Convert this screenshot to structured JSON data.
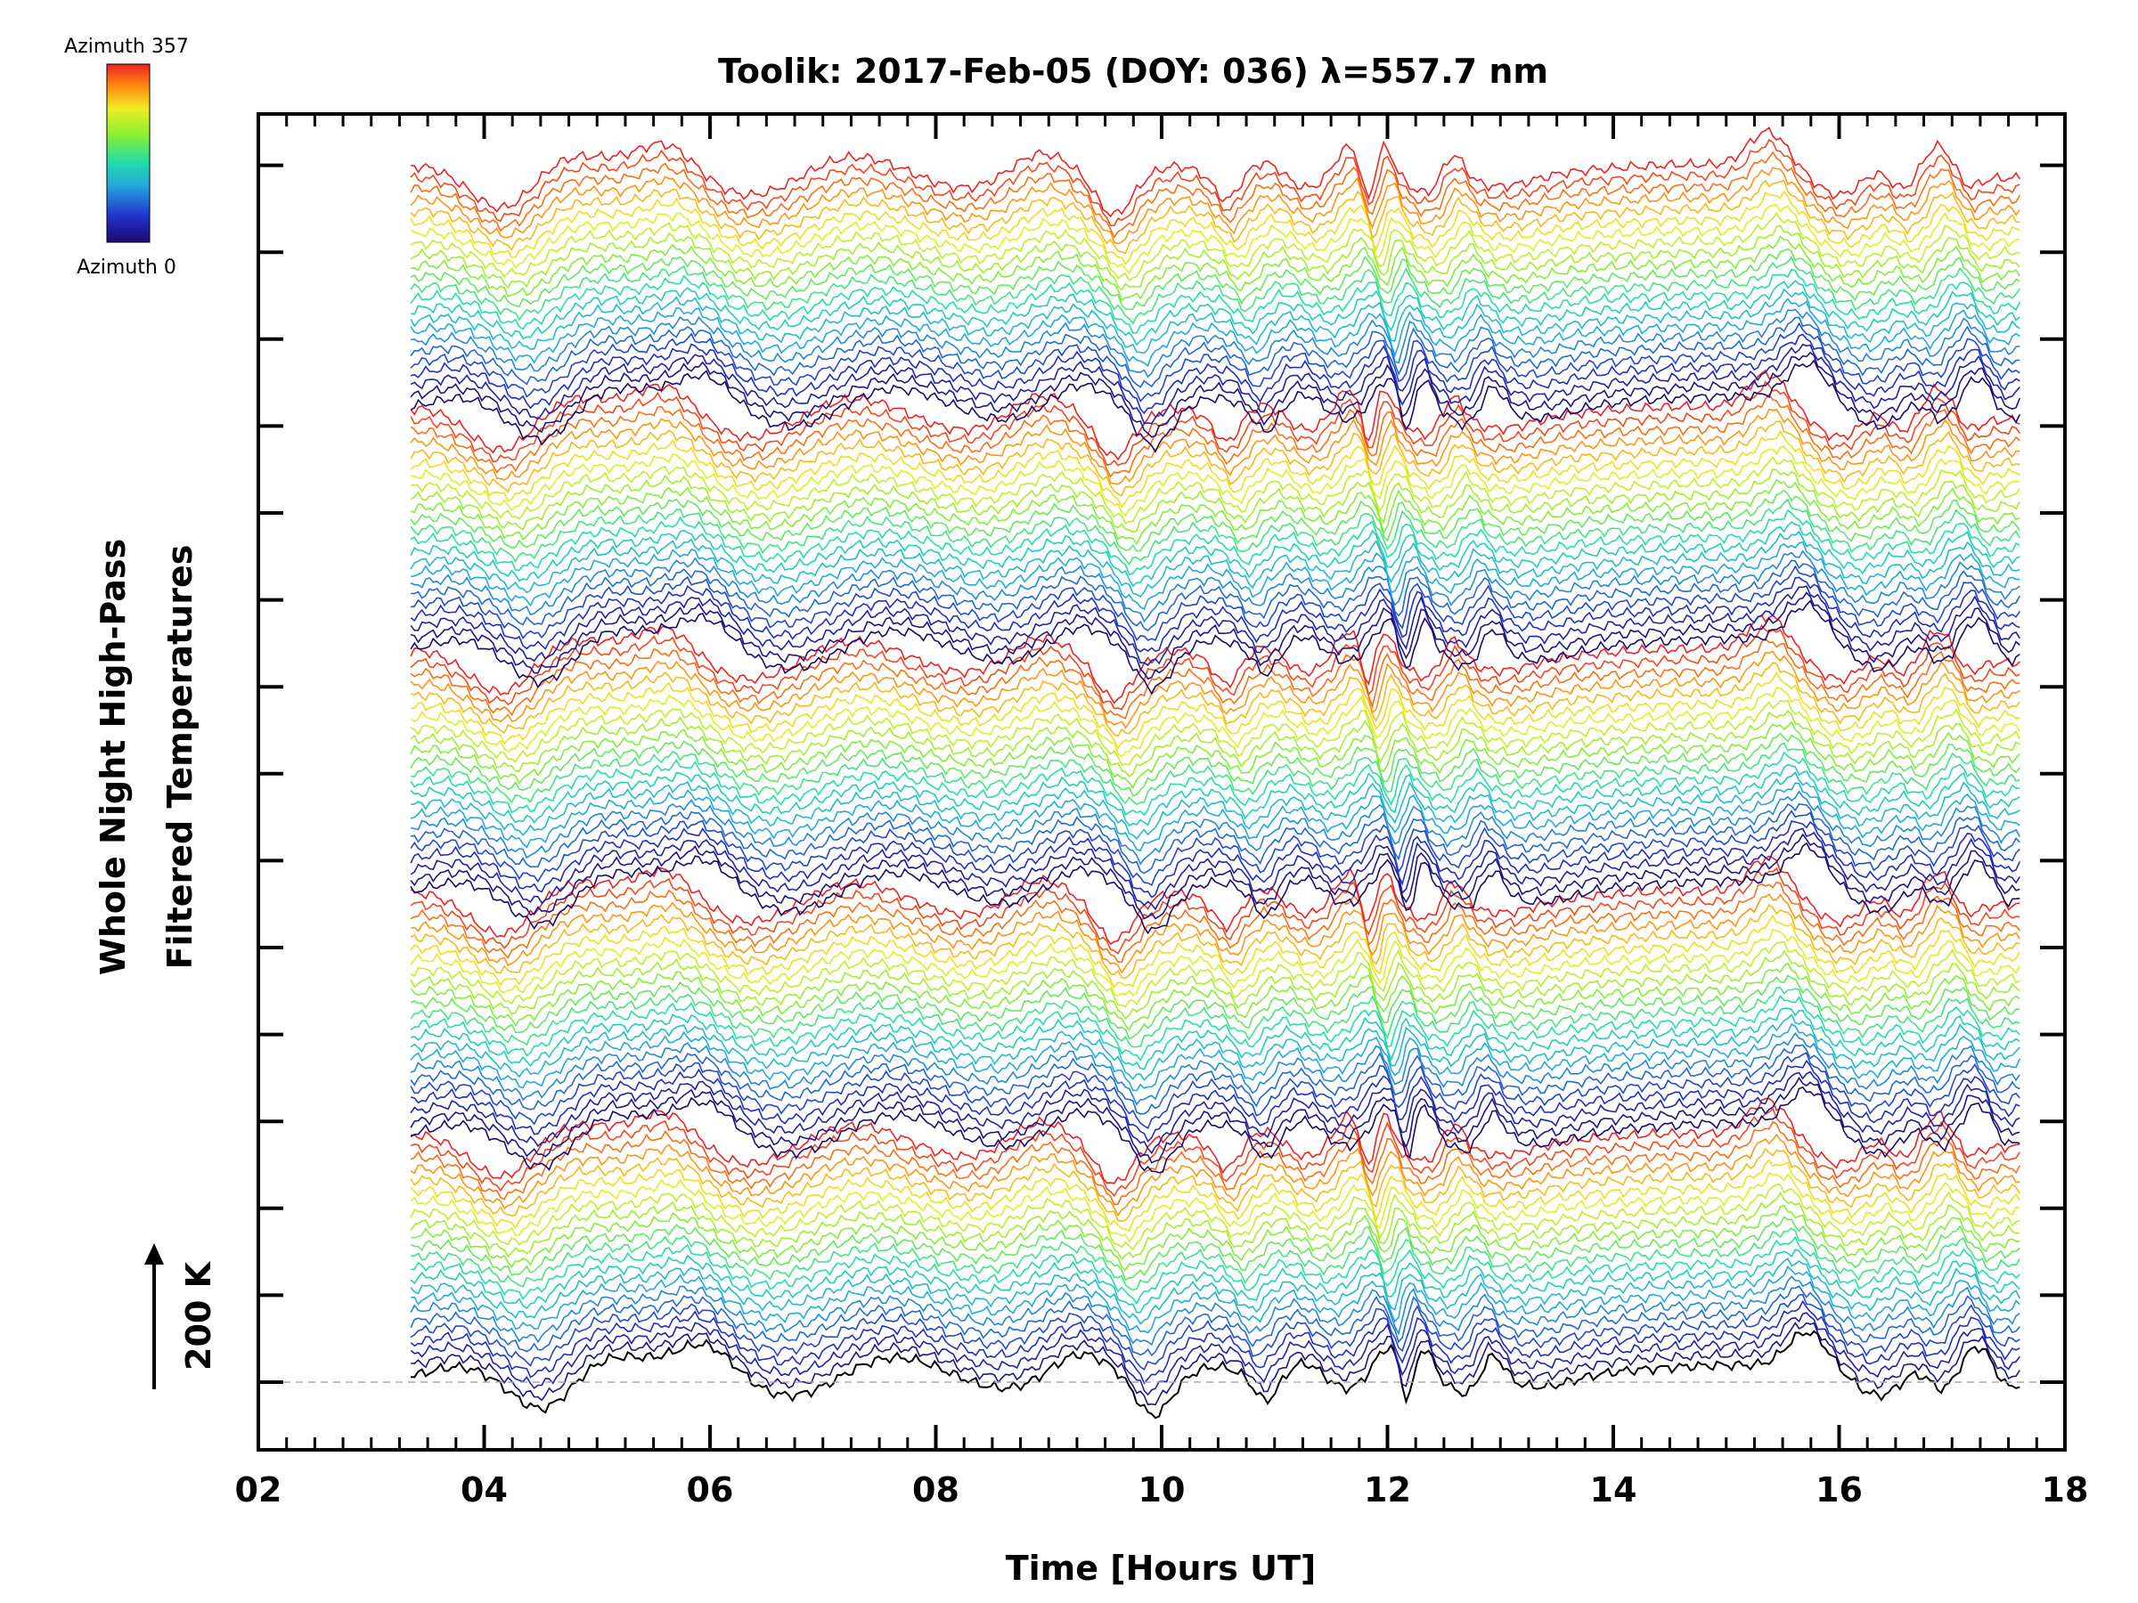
{
  "chart_data": {
    "type": "line",
    "title": "Toolik: 2017-Feb-05 (DOY: 036) λ=557.7 nm",
    "xlabel": "Time [Hours UT]",
    "ylabel_line1": "Whole Night High-Pass",
    "ylabel_line2": "Filtered Temperatures",
    "scale_label": "200 K",
    "xlim": [
      2,
      18
    ],
    "x_tick_labels": [
      "02",
      "04",
      "06",
      "08",
      "10",
      "12",
      "14",
      "16",
      "18"
    ],
    "x_tick_values": [
      2,
      4,
      6,
      8,
      10,
      12,
      14,
      16,
      18
    ],
    "time_range": [
      3.35,
      17.6
    ],
    "baseline_style": "dashed-gray",
    "colorbar": {
      "top_label": "Azimuth 357",
      "bottom_label": "Azimuth 0",
      "colormap": "rainbow",
      "azimuth_range": [
        0,
        357
      ]
    },
    "traces": {
      "count": 115,
      "offset_kelvin_per_trace": 25,
      "azimuth_cycles": 5,
      "baseline_color": "#000000"
    },
    "colors": {
      "axes": "#000000",
      "baseline": "#aaaaaa",
      "background": "#ffffff"
    }
  }
}
